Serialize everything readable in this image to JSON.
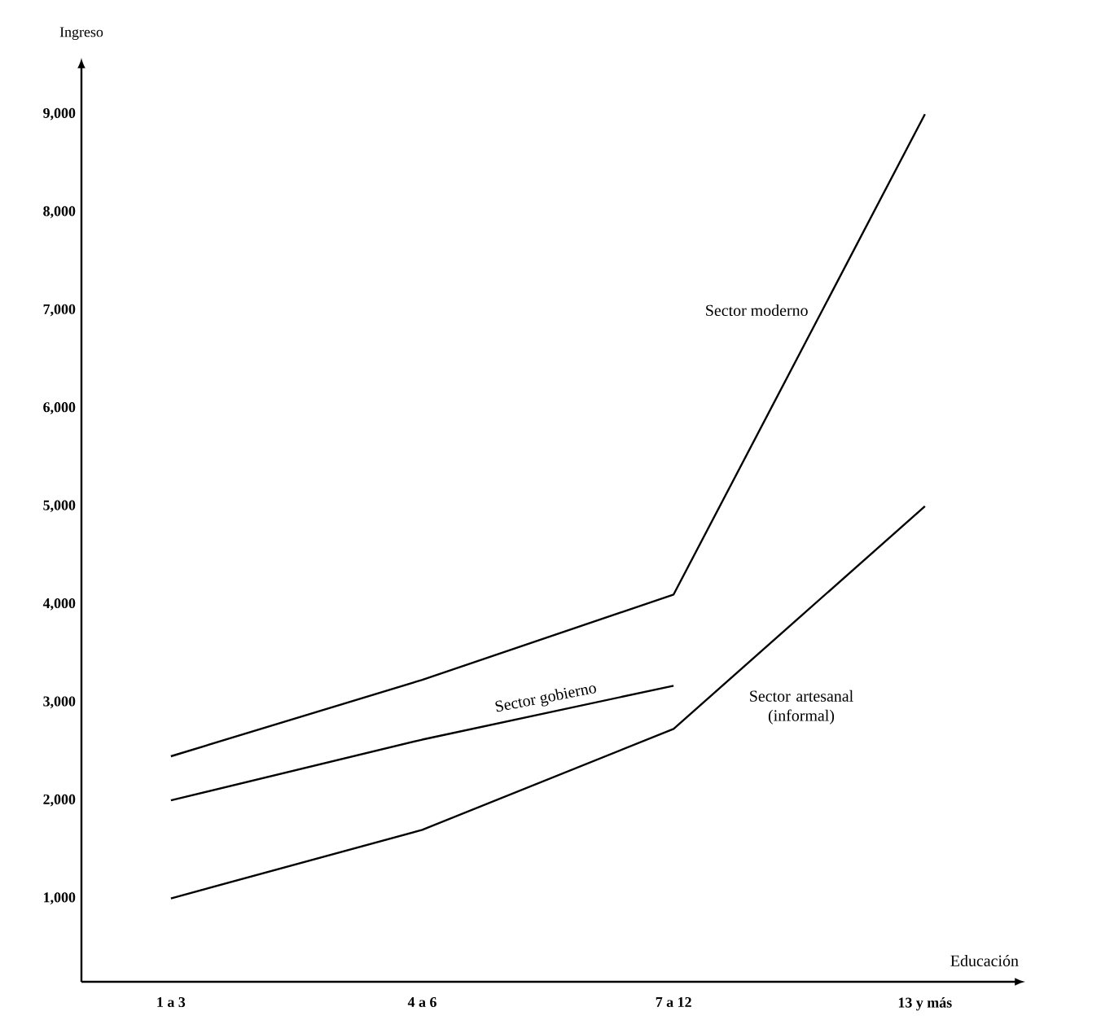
{
  "chart_data": {
    "type": "line",
    "xlabel": "Educación",
    "ylabel": "Ingreso",
    "categories": [
      "1 a 3",
      "4 a 6",
      "7 a 12",
      "13 y más"
    ],
    "series": [
      {
        "name": "Sector moderno",
        "color": "#000000",
        "values": [
          2450,
          3230,
          4100,
          9000
        ]
      },
      {
        "name": "Sector gobierno",
        "color": "#000000",
        "values": [
          2000,
          2620,
          3170,
          null
        ]
      },
      {
        "name": "Sector artesanal (informal)",
        "color": "#000000",
        "values": [
          1000,
          1700,
          2730,
          5000
        ]
      }
    ],
    "ylim": [
      150,
      9500
    ],
    "yticks": [
      {
        "value": 1000,
        "label": "1,000"
      },
      {
        "value": 2000,
        "label": "2,000"
      },
      {
        "value": 3000,
        "label": "3,000"
      },
      {
        "value": 4000,
        "label": "4,000"
      },
      {
        "value": 5000,
        "label": "5,000"
      },
      {
        "value": 6000,
        "label": "6,000"
      },
      {
        "value": 7000,
        "label": "7,000"
      },
      {
        "value": 8000,
        "label": "8,000"
      },
      {
        "value": 9000,
        "label": "9,000"
      }
    ],
    "grid": false,
    "marker": "none",
    "line_style": "solid"
  }
}
